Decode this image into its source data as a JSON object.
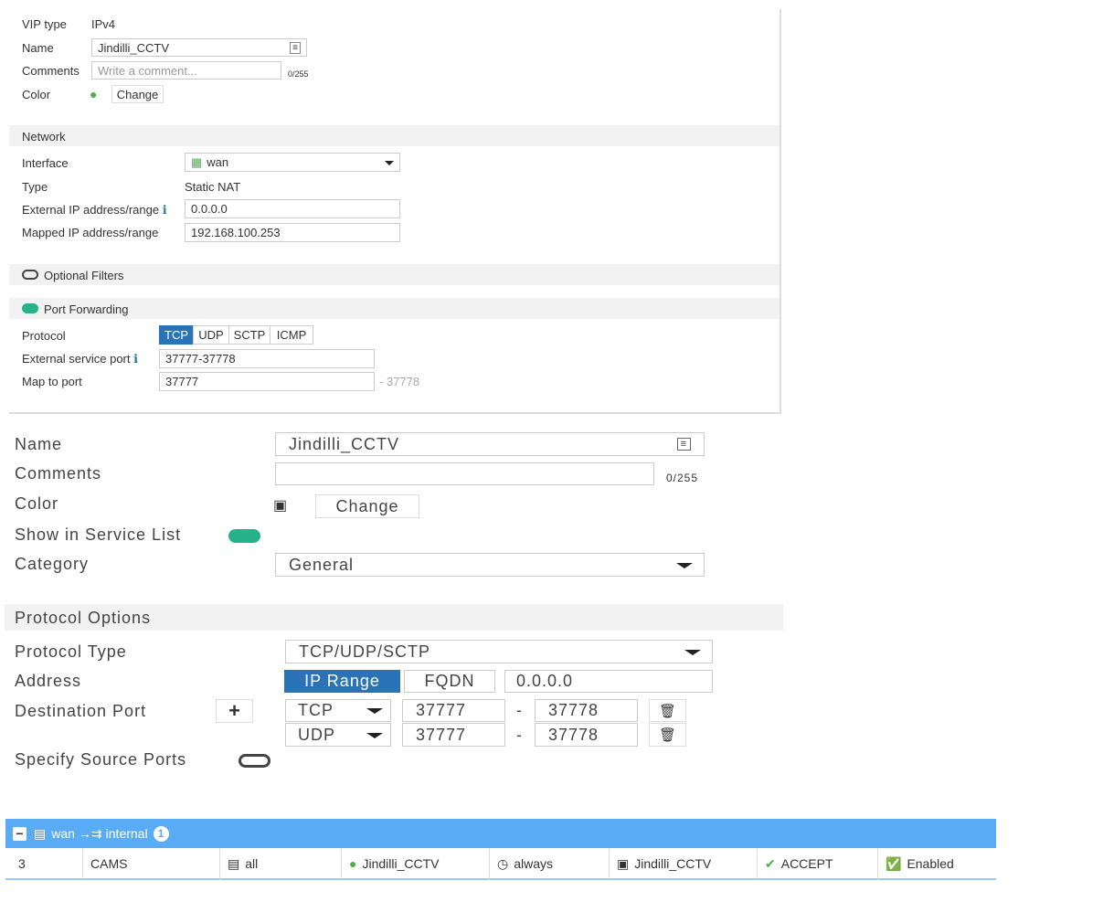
{
  "vip": {
    "vip_type_label": "VIP type",
    "vip_type": "IPv4",
    "name_label": "Name",
    "name": "Jindilli_CCTV",
    "comments_label": "Comments",
    "comments_placeholder": "Write a comment...",
    "comments_count": "0/255",
    "color_label": "Color",
    "change": "Change",
    "network_header": "Network",
    "interface_label": "Interface",
    "interface": "wan",
    "type_label": "Type",
    "type": "Static NAT",
    "ext_ip_label": "External IP address/range",
    "ext_ip": "0.0.0.0",
    "mapped_ip_label": "Mapped IP address/range",
    "mapped_ip": "192.168.100.253",
    "optional_filters": "Optional Filters",
    "port_forwarding": "Port Forwarding",
    "protocol_label": "Protocol",
    "protocols": [
      "TCP",
      "UDP",
      "SCTP",
      "ICMP"
    ],
    "protocol_selected": "TCP",
    "ext_port_label": "External service port",
    "ext_port": "37777-37778",
    "map_port_label": "Map to port",
    "map_port": "37777",
    "map_port_end": "- 37778"
  },
  "service": {
    "name_label": "Name",
    "name": "Jindilli_CCTV",
    "comments_label": "Comments",
    "comments_count": "0/255",
    "color_label": "Color",
    "change": "Change",
    "show_label": "Show in Service List",
    "category_label": "Category",
    "category": "General",
    "protocol_options": "Protocol Options",
    "protocol_type_label": "Protocol Type",
    "protocol_type": "TCP/UDP/SCTP",
    "address_label": "Address",
    "address_modes": [
      "IP Range",
      "FQDN"
    ],
    "address": "0.0.0.0",
    "dest_port_label": "Destination Port",
    "ports": [
      {
        "proto": "TCP",
        "low": "37777",
        "high": "37778"
      },
      {
        "proto": "UDP",
        "low": "37777",
        "high": "37778"
      }
    ],
    "dash": "-",
    "source_ports_label": "Specify Source Ports"
  },
  "policy": {
    "header_from": "wan",
    "header_to": "internal",
    "count": "1",
    "accent": "#5aabf5",
    "row": {
      "id": "3",
      "name": "CAMS",
      "source": "all",
      "destination": "Jindilli_CCTV",
      "schedule": "always",
      "service": "Jindilli_CCTV",
      "action": "ACCEPT",
      "status": "Enabled"
    }
  }
}
